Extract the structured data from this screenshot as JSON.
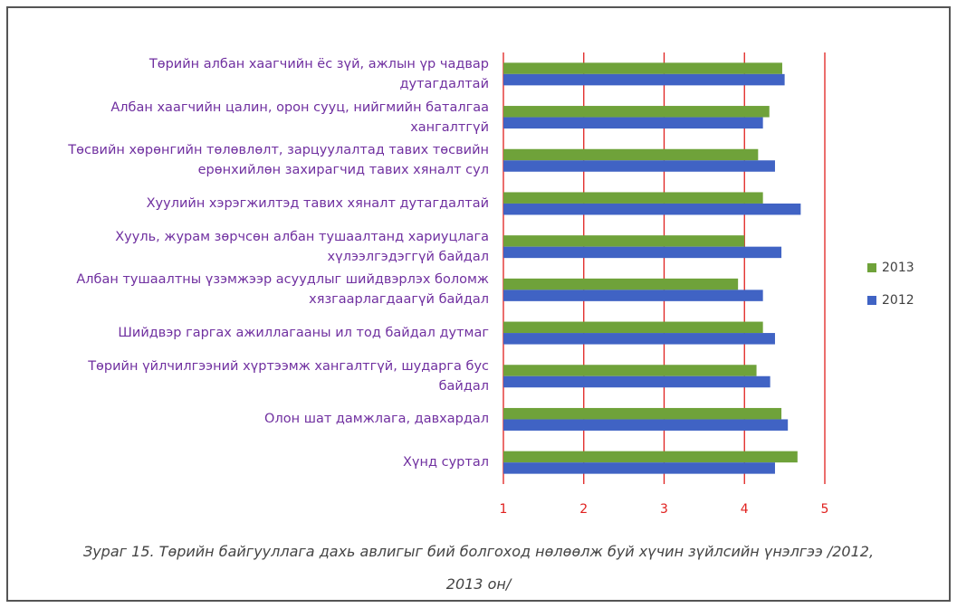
{
  "chart_data": {
    "type": "bar",
    "orientation": "horizontal",
    "categories": [
      "Төрийн албан хаагчийн ёс зүй, ажлын үр чадвар дутагдалтай",
      "Албан хаагчийн цалин, орон сууц, нийгмийн  баталгаа хангалтгүй",
      "Төсвийн хөрөнгийн төлөвлөлт, зарцуулалтад тавих төсвийн ерөнхийлөн захирагчид тавих хяналт сул",
      "Хуулийн хэрэгжилтэд тавих хяналт дутагдалтай",
      "Хууль, журам зөрчсөн албан тушаалтанд хариуцлага хүлээлгэдэггүй байдал",
      "Албан тушаалтны үзэмжээр асуудлыг шийдвэрлэх боломж хязгаарлагдаагүй байдал",
      "Шийдвэр гаргах ажиллагааны ил тод байдал дутмаг",
      "Төрийн үйлчилгээний хүртээмж хангалтгүй, шударга бус байдал",
      "Олон шат дамжлага, давхардал",
      "Хүнд суртал"
    ],
    "series": [
      {
        "name": "2013",
        "color": "#6fa23a",
        "values": [
          4.47,
          4.31,
          4.17,
          4.23,
          4.0,
          3.92,
          4.23,
          4.15,
          4.46,
          4.66
        ]
      },
      {
        "name": "2012",
        "color": "#4063c4",
        "values": [
          4.5,
          4.23,
          4.38,
          4.7,
          4.46,
          4.23,
          4.38,
          4.32,
          4.54,
          4.38
        ]
      }
    ],
    "xlim": [
      1,
      5
    ],
    "xticks": [
      1,
      2,
      3,
      4,
      5
    ],
    "grid": true,
    "grid_color": "#e0201e",
    "legend": "right",
    "caption": "Зураг 15. Төрийн байгууллага дахь авлигыг бий болгоход нөлөөлж буй хүчин зүйлсийн үнэлгээ /2012, 2013 он/"
  }
}
